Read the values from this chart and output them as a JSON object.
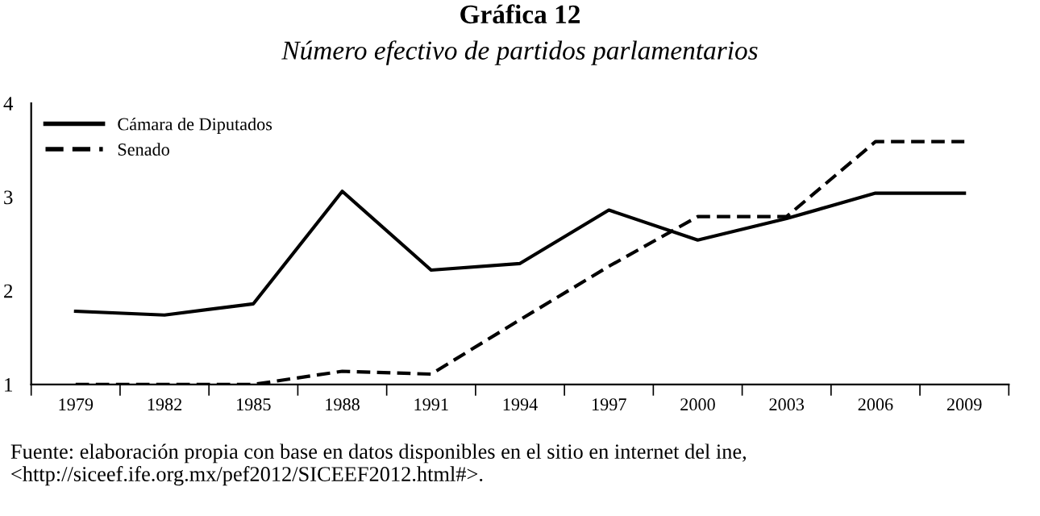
{
  "chart_data": {
    "type": "line",
    "title": "Gráfica 12",
    "subtitle": "Número efectivo de partidos parlamentarios",
    "categories": [
      "1979",
      "1982",
      "1985",
      "1988",
      "1991",
      "1994",
      "1997",
      "2000",
      "2003",
      "2006",
      "2009"
    ],
    "series": [
      {
        "name": "Cámara de Diputados",
        "color": "#000000",
        "line_style": "solid",
        "values": [
          1.78,
          1.74,
          1.86,
          3.06,
          2.22,
          2.29,
          2.86,
          2.54,
          2.77,
          3.04,
          3.04
        ]
      },
      {
        "name": "Senado",
        "color": "#000000",
        "line_style": "dashed",
        "values": [
          1.0,
          1.0,
          1.0,
          1.14,
          1.11,
          1.69,
          2.26,
          2.79,
          2.79,
          3.59,
          3.59
        ]
      }
    ],
    "ylim": [
      1,
      4
    ],
    "yticks": [
      1,
      2,
      3,
      4
    ],
    "grid": false,
    "legend": "top left",
    "marker": "none",
    "annotations": [
      "Fuente: elaboración propia con base en datos disponibles en el sitio en internet del ine, <http://siceef.ife.org.mx/pef2012/SICEEF2012.html#>."
    ]
  }
}
